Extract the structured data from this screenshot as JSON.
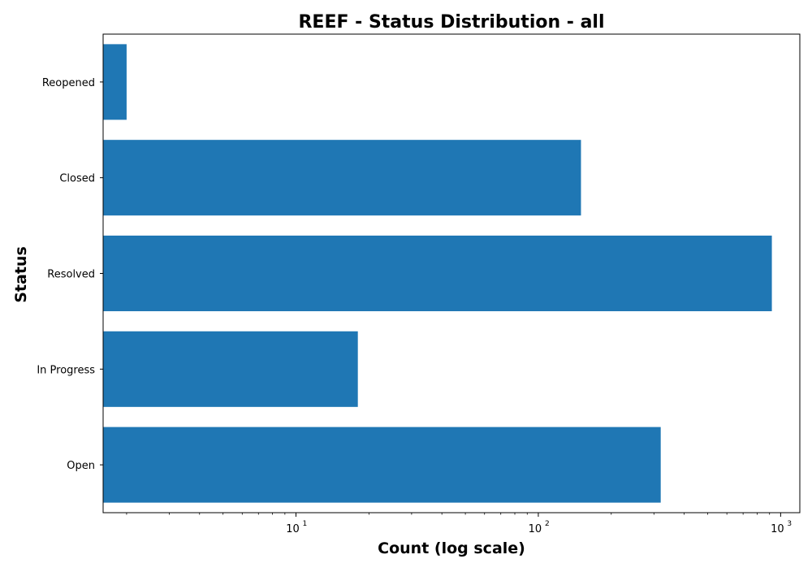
{
  "chart_data": {
    "type": "bar",
    "orientation": "horizontal",
    "title": "REEF - Status Distribution - all",
    "xlabel": "Count (log scale)",
    "ylabel": "Status",
    "x_scale": "log",
    "xlim": [
      1.6,
      1200
    ],
    "x_ticks": [
      {
        "value": 10,
        "base": "10",
        "exp": "1"
      },
      {
        "value": 100,
        "base": "10",
        "exp": "2"
      },
      {
        "value": 1000,
        "base": "10",
        "exp": "3"
      }
    ],
    "categories": [
      "Open",
      "In Progress",
      "Resolved",
      "Closed",
      "Reopened"
    ],
    "values": [
      320,
      18,
      920,
      150,
      2
    ],
    "bar_color": "#1f77b4",
    "grid": false,
    "legend": "none"
  }
}
